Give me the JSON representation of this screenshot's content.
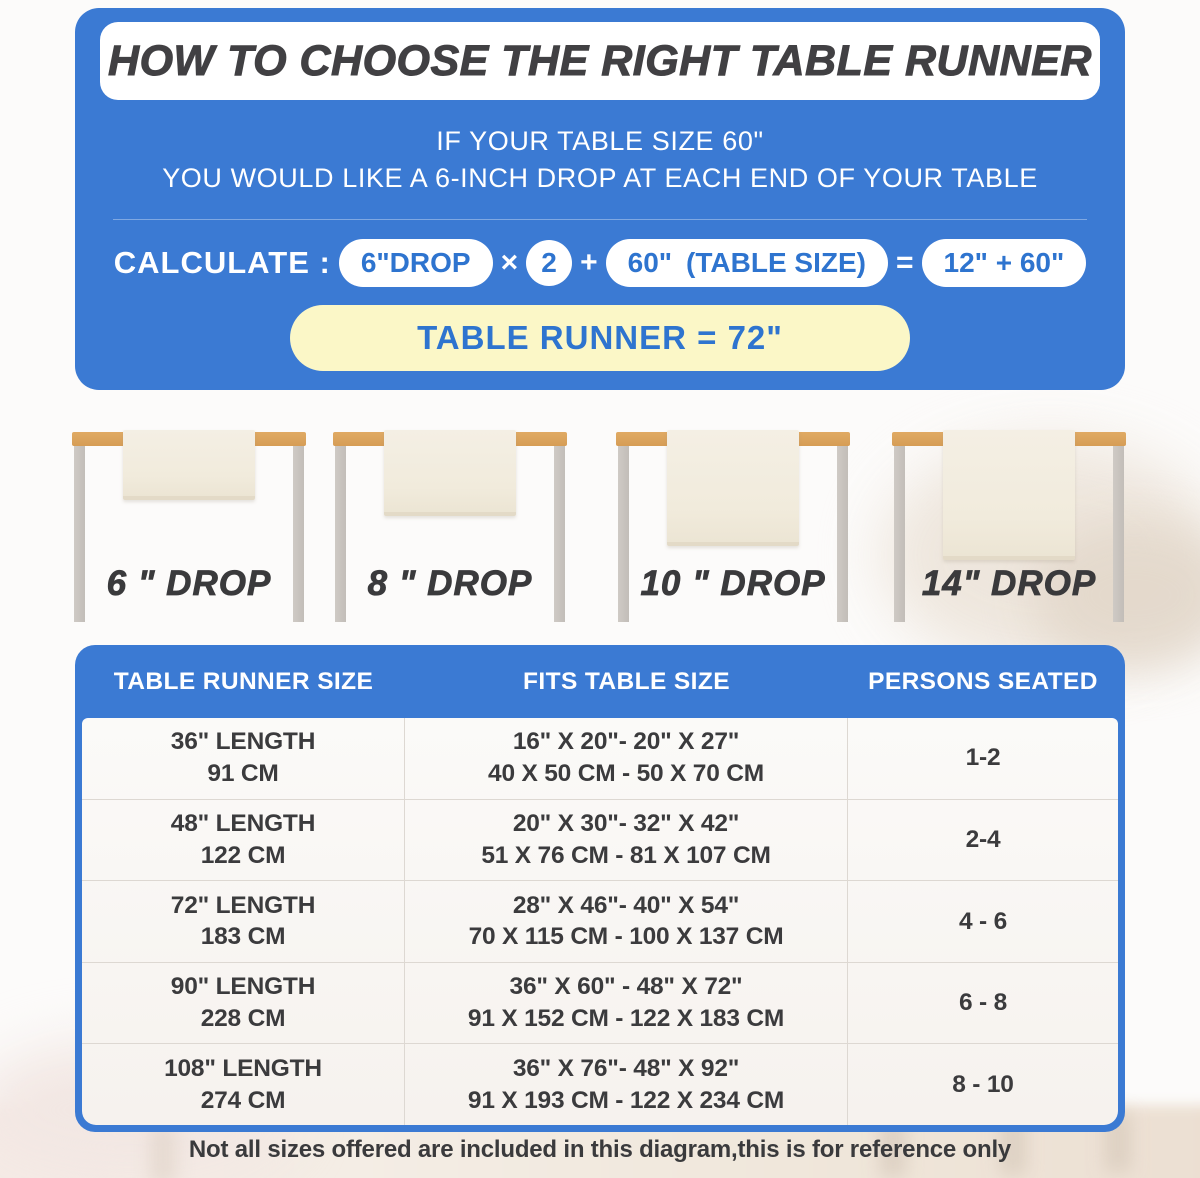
{
  "header": {
    "title": "HOW TO CHOOSE THE RIGHT TABLE RUNNER",
    "subtitle_line1": "IF YOUR TABLE SIZE 60\"",
    "subtitle_line2": "YOU WOULD LIKE A 6-INCH DROP AT EACH END OF YOUR TABLE"
  },
  "calculator": {
    "label": "CALCULATE :",
    "drop_pill": "6\"DROP",
    "times": "×",
    "multiplier": "2",
    "plus": "+",
    "table_size_value": "60\"",
    "table_size_label": "(TABLE SIZE)",
    "equals": "=",
    "result_pill": "12\" + 60\"",
    "final_result": "TABLE RUNNER = 72\""
  },
  "drops": [
    {
      "label": "6 \" DROP",
      "inches": 6
    },
    {
      "label": "8 \" DROP",
      "inches": 8
    },
    {
      "label": "10 \" DROP",
      "inches": 10
    },
    {
      "label": "14\" DROP",
      "inches": 14
    }
  ],
  "size_table": {
    "headers": [
      "TABLE RUNNER SIZE",
      "FITS TABLE SIZE",
      "PERSONS SEATED"
    ],
    "rows": [
      {
        "runner_line1": "36\" LENGTH",
        "runner_line2": "91 CM",
        "fits_line1": "16\" X 20\"- 20\" X 27\"",
        "fits_line2": "40 X 50 CM - 50 X 70 CM",
        "persons": "1-2"
      },
      {
        "runner_line1": "48\" LENGTH",
        "runner_line2": "122 CM",
        "fits_line1": "20\" X 30\"- 32\" X 42\"",
        "fits_line2": "51 X 76 CM - 81 X 107 CM",
        "persons": "2-4"
      },
      {
        "runner_line1": "72\" LENGTH",
        "runner_line2": "183 CM",
        "fits_line1": "28\" X 46\"- 40\" X 54\"",
        "fits_line2": "70 X 115 CM - 100 X 137 CM",
        "persons": "4 - 6"
      },
      {
        "runner_line1": "90\" LENGTH",
        "runner_line2": "228 CM",
        "fits_line1": "36\" X 60\" - 48\" X 72\"",
        "fits_line2": "91 X 152 CM - 122 X 183 CM",
        "persons": "6 - 8"
      },
      {
        "runner_line1": "108\" LENGTH",
        "runner_line2": "274 CM",
        "fits_line1": "36\" X 76\"- 48\" X 92\"",
        "fits_line2": "91 X 193 CM - 122 X 234 CM",
        "persons": "8 - 10"
      }
    ]
  },
  "footer_note": "Not all sizes offered are included in this diagram,this is for reference only",
  "colors": {
    "panel_blue": "#3b7ad3",
    "accent_blue": "#2e74cf",
    "result_yellow": "#fbf7c7",
    "tabletop_wood": "#dda55f",
    "table_leg": "#c9c4bf",
    "runner_cloth": "#f2ecdf",
    "title_dark": "#414043"
  }
}
